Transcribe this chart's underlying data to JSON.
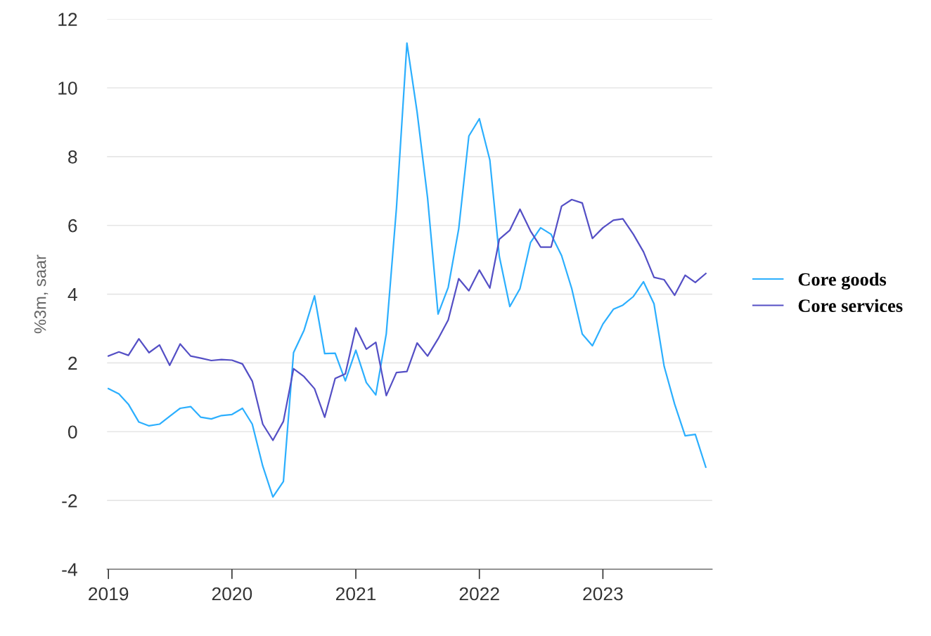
{
  "chart_data": {
    "type": "line",
    "ylabel": "%3m, saar",
    "x": [
      "2019-01",
      "2019-02",
      "2019-03",
      "2019-04",
      "2019-05",
      "2019-06",
      "2019-07",
      "2019-08",
      "2019-09",
      "2019-10",
      "2019-11",
      "2019-12",
      "2020-01",
      "2020-02",
      "2020-03",
      "2020-04",
      "2020-05",
      "2020-06",
      "2020-07",
      "2020-08",
      "2020-09",
      "2020-10",
      "2020-11",
      "2020-12",
      "2021-01",
      "2021-02",
      "2021-03",
      "2021-04",
      "2021-05",
      "2021-06",
      "2021-07",
      "2021-08",
      "2021-09",
      "2021-10",
      "2021-11",
      "2021-12",
      "2022-01",
      "2022-02",
      "2022-03",
      "2022-04",
      "2022-05",
      "2022-06",
      "2022-07",
      "2022-08",
      "2022-09",
      "2022-10",
      "2022-11",
      "2022-12",
      "2023-01",
      "2023-02",
      "2023-03",
      "2023-04",
      "2023-05",
      "2023-06",
      "2023-07",
      "2023-08",
      "2023-09",
      "2023-10",
      "2023-11"
    ],
    "series": [
      {
        "name": "Core goods",
        "color": "#2caffe",
        "values": [
          1.25,
          1.1,
          0.8,
          0.28,
          0.17,
          0.22,
          0.45,
          0.68,
          0.73,
          0.42,
          0.37,
          0.47,
          0.5,
          0.68,
          0.22,
          -1.0,
          -1.9,
          -1.45,
          2.3,
          2.95,
          3.95,
          2.27,
          2.28,
          1.48,
          2.37,
          1.43,
          1.07,
          2.85,
          6.5,
          11.3,
          9.3,
          6.8,
          3.42,
          4.2,
          5.9,
          8.6,
          9.1,
          7.9,
          5.1,
          3.64,
          4.16,
          5.5,
          5.93,
          5.74,
          5.12,
          4.16,
          2.84,
          2.5,
          3.13,
          3.56,
          3.68,
          3.93,
          4.36,
          3.72,
          1.9,
          0.8,
          -0.12,
          -0.08,
          -1.03
        ]
      },
      {
        "name": "Core services",
        "color": "#544fc5",
        "values": [
          2.2,
          2.32,
          2.22,
          2.7,
          2.3,
          2.52,
          1.93,
          2.55,
          2.2,
          2.14,
          2.07,
          2.1,
          2.08,
          1.97,
          1.47,
          0.22,
          -0.25,
          0.3,
          1.83,
          1.6,
          1.25,
          0.42,
          1.55,
          1.68,
          3.02,
          2.4,
          2.6,
          1.05,
          1.72,
          1.75,
          2.58,
          2.2,
          2.7,
          3.25,
          4.45,
          4.1,
          4.7,
          4.18,
          5.6,
          5.86,
          6.47,
          5.84,
          5.37,
          5.37,
          6.56,
          6.75,
          6.65,
          5.62,
          5.93,
          6.15,
          6.19,
          5.74,
          5.23,
          4.49,
          4.42,
          3.97,
          4.55,
          4.34,
          4.6
        ]
      }
    ],
    "xlim": [
      "2018-12-28",
      "2023-11-20"
    ],
    "xticks": [
      {
        "value": "2019-01-01",
        "label": "2019"
      },
      {
        "value": "2020-01-01",
        "label": "2020"
      },
      {
        "value": "2021-01-01",
        "label": "2021"
      },
      {
        "value": "2022-01-01",
        "label": "2022"
      },
      {
        "value": "2023-01-01",
        "label": "2023"
      }
    ],
    "ylim": [
      -4,
      12
    ],
    "yticks": [
      -4,
      -2,
      0,
      2,
      4,
      6,
      8,
      10,
      12
    ],
    "grid": "y",
    "legend": "right"
  }
}
